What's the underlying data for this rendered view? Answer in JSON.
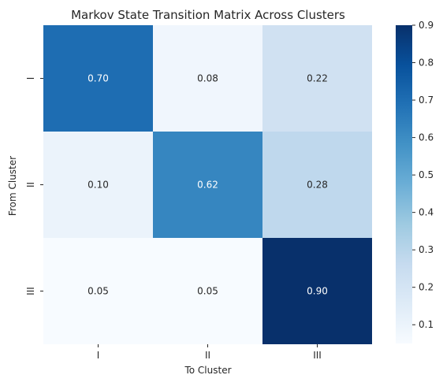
{
  "chart_data": {
    "type": "heatmap",
    "title": "Markov State Transition Matrix Across Clusters",
    "xlabel": "To Cluster",
    "ylabel": "From Cluster",
    "x_categories": [
      "I",
      "II",
      "III"
    ],
    "y_categories": [
      "I",
      "II",
      "III"
    ],
    "values": [
      [
        0.7,
        0.08,
        0.22
      ],
      [
        0.1,
        0.62,
        0.28
      ],
      [
        0.05,
        0.05,
        0.9
      ]
    ],
    "value_labels": [
      [
        "0.70",
        "0.08",
        "0.22"
      ],
      [
        "0.10",
        "0.62",
        "0.28"
      ],
      [
        "0.05",
        "0.05",
        "0.90"
      ]
    ],
    "colormap": "Blues",
    "vmin": 0.05,
    "vmax": 0.9,
    "colorbar_ticks": [
      0.1,
      0.2,
      0.3,
      0.4,
      0.5,
      0.6,
      0.7,
      0.8,
      0.9
    ],
    "colorbar_tick_labels": [
      "0.1",
      "0.2",
      "0.3",
      "0.4",
      "0.5",
      "0.6",
      "0.7",
      "0.8",
      "0.9"
    ]
  }
}
